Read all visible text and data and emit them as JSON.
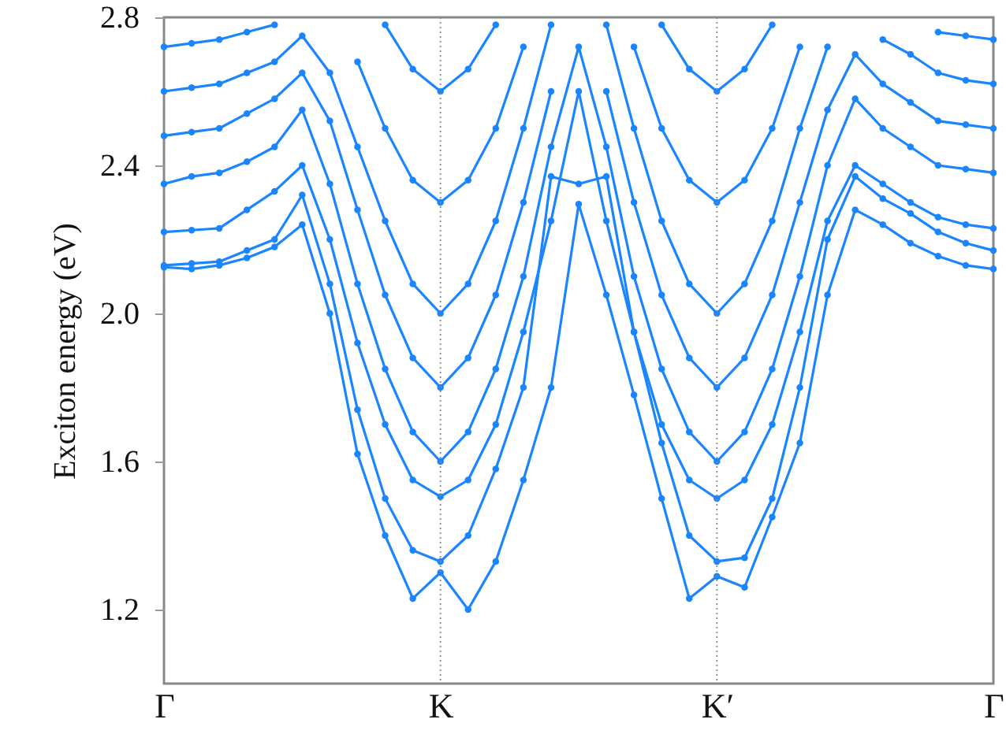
{
  "chart_data": {
    "type": "line",
    "ylabel": "Exciton energy (eV)",
    "categories": [
      "Γ",
      null,
      null,
      null,
      null,
      null,
      null,
      null,
      null,
      null,
      "K",
      null,
      null,
      null,
      null,
      null,
      null,
      null,
      null,
      null,
      "K′",
      null,
      null,
      null,
      null,
      null,
      null,
      null,
      null,
      null,
      "Γ"
    ],
    "ylim": [
      1.0,
      2.8
    ],
    "yticks": [
      1.2,
      1.6,
      {
        "value": 2,
        "label": "2.0"
      },
      2.4,
      2.8
    ],
    "marker": "circle",
    "line_style": "solid",
    "ref_lines": [
      {
        "axis": "x",
        "value": "K",
        "label": null,
        "color": "#888888",
        "line_style": "dotted"
      },
      {
        "axis": "x",
        "value": "K′",
        "label": null,
        "color": "#888888",
        "line_style": "dotted"
      }
    ],
    "series": [
      {
        "color": "#1a85ff",
        "values": [
          2.125,
          2.12,
          2.13,
          2.15,
          2.18,
          2.24,
          2.0,
          1.62,
          1.4,
          1.23,
          1.3,
          1.2,
          1.33,
          1.55,
          1.8,
          2.295,
          2.05,
          1.78,
          1.5,
          1.23,
          1.29,
          1.26,
          1.45,
          1.65,
          2.05,
          2.28,
          2.24,
          2.19,
          2.155,
          2.13,
          2.12
        ]
      },
      {
        "color": "#1a85ff",
        "values": [
          2.13,
          2.135,
          2.14,
          2.17,
          2.2,
          2.32,
          2.08,
          1.74,
          1.5,
          1.36,
          1.33,
          1.4,
          1.58,
          1.8,
          2.37,
          2.35,
          2.37,
          1.95,
          1.65,
          1.4,
          1.33,
          1.34,
          1.5,
          1.8,
          2.2,
          2.37,
          2.31,
          2.27,
          2.22,
          2.19,
          2.17
        ]
      },
      {
        "color": "#1a85ff",
        "values": [
          2.22,
          2.225,
          2.23,
          2.28,
          2.33,
          2.4,
          2.2,
          1.92,
          1.7,
          1.55,
          1.505,
          1.55,
          1.7,
          1.95,
          2.25,
          2.6,
          2.25,
          1.95,
          1.7,
          1.55,
          1.5,
          1.55,
          1.7,
          1.95,
          2.25,
          2.4,
          2.35,
          2.3,
          2.26,
          2.24,
          2.23
        ]
      },
      {
        "color": "#1a85ff",
        "values": [
          2.35,
          2.37,
          2.38,
          2.41,
          2.45,
          2.55,
          2.35,
          2.08,
          1.85,
          1.68,
          1.6,
          1.68,
          1.85,
          2.1,
          2.45,
          2.72,
          2.45,
          2.1,
          1.85,
          1.68,
          1.6,
          1.68,
          1.85,
          2.1,
          2.4,
          2.58,
          2.5,
          2.45,
          2.4,
          2.39,
          2.38
        ]
      },
      {
        "color": "#1a85ff",
        "values": [
          2.48,
          2.49,
          2.5,
          2.54,
          2.58,
          2.65,
          2.52,
          2.28,
          2.05,
          1.88,
          1.8,
          1.88,
          2.05,
          2.3,
          2.6,
          null,
          2.6,
          2.3,
          2.05,
          1.88,
          1.8,
          1.88,
          2.05,
          2.3,
          2.55,
          2.7,
          2.62,
          2.57,
          2.52,
          2.51,
          2.5
        ]
      },
      {
        "color": "#1a85ff",
        "values": [
          2.6,
          2.61,
          2.62,
          2.65,
          2.68,
          2.75,
          2.65,
          2.45,
          2.25,
          2.08,
          2.0,
          2.08,
          2.25,
          2.5,
          2.78,
          null,
          2.78,
          2.5,
          2.25,
          2.08,
          2.0,
          2.08,
          2.25,
          2.5,
          2.72,
          null,
          2.74,
          2.7,
          2.65,
          2.63,
          2.62
        ]
      },
      {
        "color": "#1a85ff",
        "values": [
          2.72,
          2.73,
          2.74,
          2.76,
          2.78,
          null,
          null,
          2.68,
          2.5,
          2.36,
          2.3,
          2.36,
          2.5,
          2.72,
          null,
          null,
          null,
          2.72,
          2.5,
          2.36,
          2.3,
          2.36,
          2.5,
          2.72,
          null,
          null,
          null,
          null,
          2.76,
          2.75,
          2.74
        ]
      },
      {
        "color": "#1a85ff",
        "values": [
          null,
          null,
          null,
          null,
          null,
          null,
          null,
          null,
          2.78,
          2.66,
          2.6,
          2.66,
          2.78,
          null,
          null,
          null,
          null,
          null,
          2.78,
          2.66,
          2.6,
          2.66,
          2.78,
          null,
          null,
          null,
          null,
          null,
          null,
          null,
          null
        ]
      }
    ]
  }
}
